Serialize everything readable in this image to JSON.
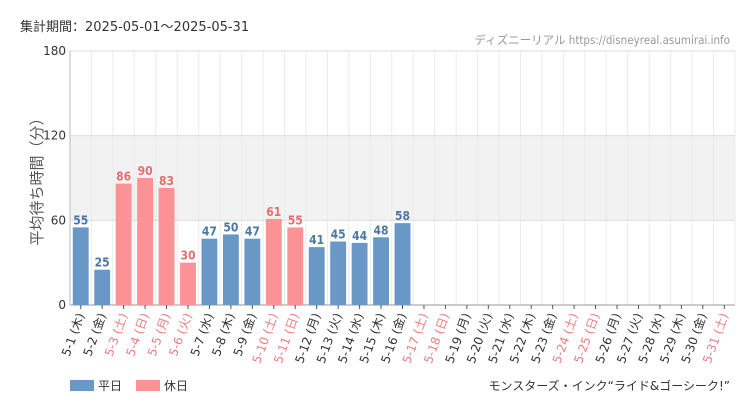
{
  "period_label": "集計期間：2025-05-01〜2025-05-31",
  "source_credit": "ディズニーリアル https://disneyreal.asumirai.info",
  "attraction_name": "モンスターズ・インク“ライド&ゴーシーク!”",
  "colors": {
    "weekday": "#6a98c6",
    "holiday": "#fd9296",
    "weekday_label": "#4a78a6",
    "holiday_label": "#e36f74",
    "holiday_tick": "#ee7c80",
    "band": "#f2f2f2"
  },
  "chart_data": {
    "type": "bar",
    "title": "",
    "ylabel": "平均待ち時間（分）",
    "xlabel": "",
    "ylim": [
      0,
      180
    ],
    "yticks": [
      0,
      60,
      120,
      180
    ],
    "shaded_band": [
      60,
      120
    ],
    "grid": true,
    "legend_position": "bottom-left",
    "legend": [
      {
        "key": "weekday",
        "label": "平日"
      },
      {
        "key": "holiday",
        "label": "休日"
      }
    ],
    "categories": [
      "5-1 (木)",
      "5-2 (金)",
      "5-3 (土)",
      "5-4 (日)",
      "5-5 (月)",
      "5-6 (火)",
      "5-7 (水)",
      "5-8 (木)",
      "5-9 (金)",
      "5-10 (土)",
      "5-11 (日)",
      "5-12 (月)",
      "5-13 (火)",
      "5-14 (水)",
      "5-15 (木)",
      "5-16 (金)",
      "5-17 (土)",
      "5-18 (日)",
      "5-19 (月)",
      "5-20 (火)",
      "5-21 (水)",
      "5-22 (木)",
      "5-23 (金)",
      "5-24 (土)",
      "5-25 (日)",
      "5-26 (月)",
      "5-27 (火)",
      "5-28 (水)",
      "5-29 (木)",
      "5-30 (金)",
      "5-31 (土)"
    ],
    "day_type": [
      "weekday",
      "weekday",
      "holiday",
      "holiday",
      "holiday",
      "holiday",
      "weekday",
      "weekday",
      "weekday",
      "holiday",
      "holiday",
      "weekday",
      "weekday",
      "weekday",
      "weekday",
      "weekday",
      "holiday",
      "holiday",
      "weekday",
      "weekday",
      "weekday",
      "weekday",
      "weekday",
      "holiday",
      "holiday",
      "weekday",
      "weekday",
      "weekday",
      "weekday",
      "weekday",
      "holiday"
    ],
    "values": [
      55,
      25,
      86,
      90,
      83,
      30,
      47,
      50,
      47,
      61,
      55,
      41,
      45,
      44,
      48,
      58,
      null,
      null,
      null,
      null,
      null,
      null,
      null,
      null,
      null,
      null,
      null,
      null,
      null,
      null,
      null
    ]
  }
}
